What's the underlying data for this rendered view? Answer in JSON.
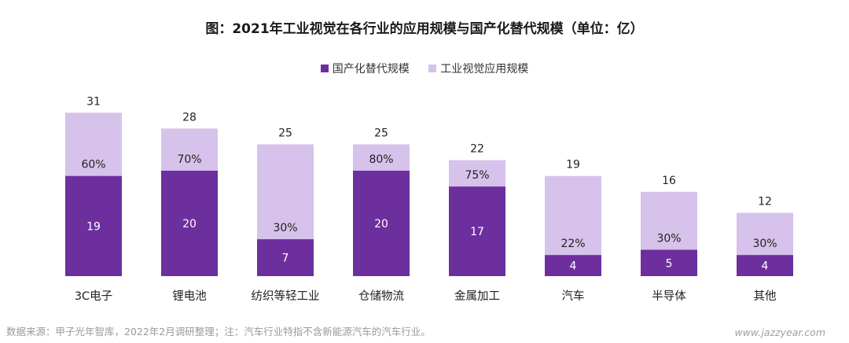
{
  "title": "图：2021年工业视觉在各行业的应用规模与国产化替代规模（单位：亿）",
  "colors": {
    "replacement": "#6e2f9e",
    "total": "#d6c2ea"
  },
  "chart_data": {
    "type": "bar",
    "stacked": true,
    "categories": [
      "3C电子",
      "锂电池",
      "纺织等轻工业",
      "仓储物流",
      "金属加工",
      "汽车",
      "半导体",
      "其他"
    ],
    "series": [
      {
        "name": "国产化替代规模",
        "values": [
          19,
          20,
          7,
          20,
          17,
          4,
          5,
          4
        ]
      },
      {
        "name": "工业视觉应用规模",
        "values": [
          31,
          28,
          25,
          25,
          22,
          19,
          16,
          12
        ]
      }
    ],
    "percent_labels": [
      "60%",
      "70%",
      "30%",
      "80%",
      "75%",
      "22%",
      "30%",
      "30%"
    ],
    "legend_position": "top-center",
    "grid": false
  },
  "footer": {
    "source": "数据来源：甲子光年智库，2022年2月调研整理；注：汽车行业特指不含新能源汽车的汽车行业。",
    "site": "www.jazzyear.com"
  }
}
